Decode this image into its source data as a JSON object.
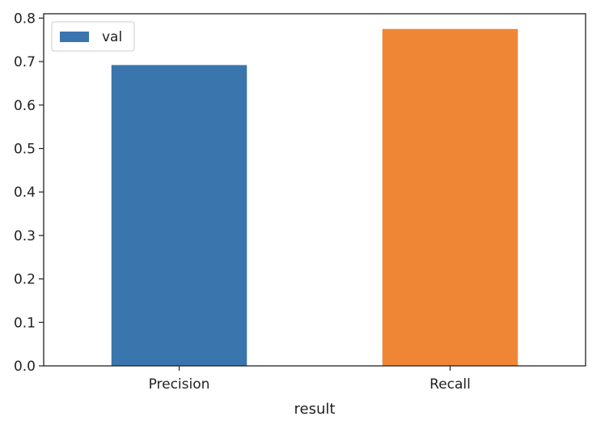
{
  "chart_data": {
    "type": "bar",
    "categories": [
      "Precision",
      "Recall"
    ],
    "series": [
      {
        "name": "val",
        "values": [
          0.692,
          0.775
        ]
      }
    ],
    "bar_colors": [
      "#3a75ae",
      "#ef8636"
    ],
    "legend_color": "#3a75ae",
    "xlabel": "result",
    "ylabel": "",
    "ylim": [
      0,
      0.81
    ],
    "yticks": [
      0.0,
      0.1,
      0.2,
      0.3,
      0.4,
      0.5,
      0.6,
      0.7,
      0.8
    ],
    "ytick_labels": [
      "0.0",
      "0.1",
      "0.2",
      "0.3",
      "0.4",
      "0.5",
      "0.6",
      "0.7",
      "0.8"
    ],
    "grid": false,
    "legend_position": "top-left"
  }
}
